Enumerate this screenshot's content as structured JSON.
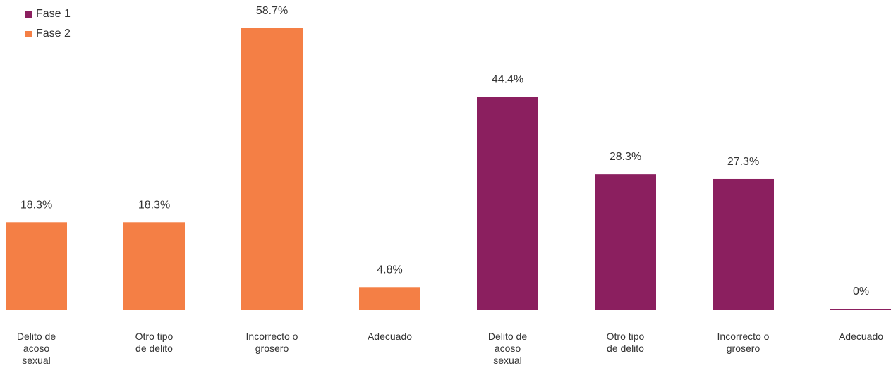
{
  "chart_data": {
    "type": "bar",
    "legend": [
      {
        "name": "Fase 1",
        "color": "#8B1F5F"
      },
      {
        "name": "Fase 2",
        "color": "#F47F45"
      }
    ],
    "legend_position": "top-left",
    "grid": false,
    "ylim": [
      0,
      60
    ],
    "bars": [
      {
        "category": [
          "Delito de",
          "acoso",
          "sexual"
        ],
        "value": 18.3,
        "label": "18.3%",
        "series": "Fase 2"
      },
      {
        "category": [
          "Otro tipo",
          "de delito"
        ],
        "value": 18.3,
        "label": "18.3%",
        "series": "Fase 2"
      },
      {
        "category": [
          "Incorrecto o",
          "grosero"
        ],
        "value": 58.7,
        "label": "58.7%",
        "series": "Fase 2"
      },
      {
        "category": [
          "Adecuado"
        ],
        "value": 4.8,
        "label": "4.8%",
        "series": "Fase 2"
      },
      {
        "category": [
          "Delito de",
          "acoso",
          "sexual"
        ],
        "value": 44.4,
        "label": "44.4%",
        "series": "Fase 1"
      },
      {
        "category": [
          "Otro tipo",
          "de delito"
        ],
        "value": 28.3,
        "label": "28.3%",
        "series": "Fase 1"
      },
      {
        "category": [
          "Incorrecto o",
          "grosero"
        ],
        "value": 27.3,
        "label": "27.3%",
        "series": "Fase 1"
      },
      {
        "category": [
          "Adecuado"
        ],
        "value": 0,
        "label": "0%",
        "series": "Fase 1"
      }
    ]
  }
}
